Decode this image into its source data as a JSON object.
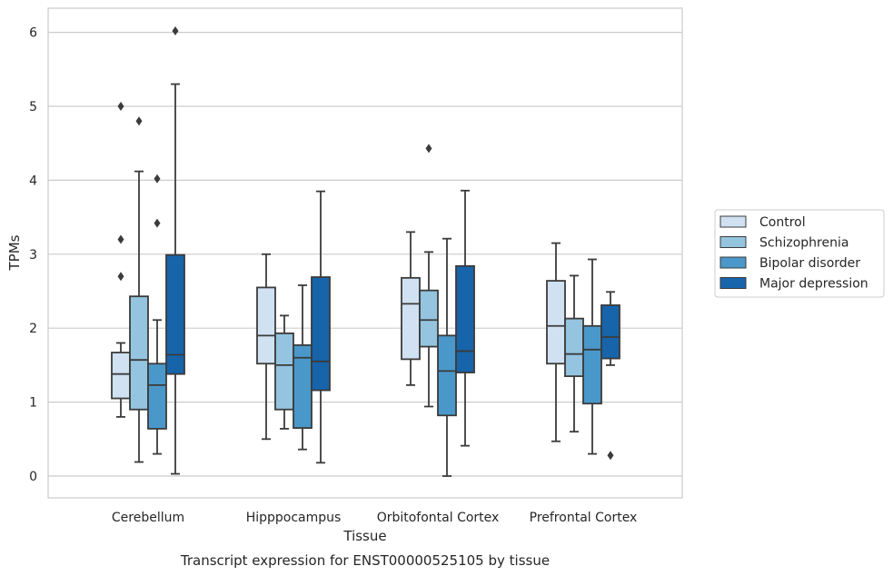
{
  "chart_data": {
    "type": "box",
    "xlabel": "Tissue",
    "ylabel": "TPMs",
    "caption": "Transcript expression for ENST00000525105 by tissue",
    "ylim": [
      -0.3,
      6.3
    ],
    "yticks": [
      0,
      1,
      2,
      3,
      4,
      5,
      6
    ],
    "grid": "horizontal",
    "legend_position": "right",
    "categories": [
      "Cerebellum",
      "Hipppocampus",
      "Orbitofontal Cortex",
      "Prefrontal Cortex"
    ],
    "series": [
      {
        "name": "Control",
        "color": "#d0e1f2",
        "boxes": [
          {
            "whisker_low": 0.8,
            "q1": 1.05,
            "median": 1.38,
            "q3": 1.67,
            "whisker_high": 1.8,
            "outliers": [
              2.7,
              3.2,
              5.0
            ]
          },
          {
            "whisker_low": 0.5,
            "q1": 1.52,
            "median": 1.9,
            "q3": 2.55,
            "whisker_high": 3.0,
            "outliers": []
          },
          {
            "whisker_low": 1.23,
            "q1": 1.58,
            "median": 2.33,
            "q3": 2.68,
            "whisker_high": 3.3,
            "outliers": []
          },
          {
            "whisker_low": 0.47,
            "q1": 1.52,
            "median": 2.03,
            "q3": 2.64,
            "whisker_high": 3.15,
            "outliers": []
          }
        ]
      },
      {
        "name": "Schizophrenia",
        "color": "#94c4df",
        "boxes": [
          {
            "whisker_low": 0.19,
            "q1": 0.9,
            "median": 1.57,
            "q3": 2.43,
            "whisker_high": 4.12,
            "outliers": [
              4.8
            ]
          },
          {
            "whisker_low": 0.64,
            "q1": 0.9,
            "median": 1.5,
            "q3": 1.93,
            "whisker_high": 2.17,
            "outliers": []
          },
          {
            "whisker_low": 0.94,
            "q1": 1.75,
            "median": 2.11,
            "q3": 2.51,
            "whisker_high": 3.03,
            "outliers": [
              4.43
            ]
          },
          {
            "whisker_low": 0.6,
            "q1": 1.35,
            "median": 1.65,
            "q3": 2.13,
            "whisker_high": 2.71,
            "outliers": []
          }
        ]
      },
      {
        "name": "Bipolar disorder",
        "color": "#4a98c9",
        "boxes": [
          {
            "whisker_low": 0.3,
            "q1": 0.64,
            "median": 1.23,
            "q3": 1.52,
            "whisker_high": 2.11,
            "outliers": [
              3.42,
              4.02
            ]
          },
          {
            "whisker_low": 0.36,
            "q1": 0.65,
            "median": 1.6,
            "q3": 1.77,
            "whisker_high": 2.58,
            "outliers": []
          },
          {
            "whisker_low": 0.0,
            "q1": 0.82,
            "median": 1.42,
            "q3": 1.9,
            "whisker_high": 3.21,
            "outliers": []
          },
          {
            "whisker_low": 0.3,
            "q1": 0.98,
            "median": 1.71,
            "q3": 2.03,
            "whisker_high": 2.93,
            "outliers": []
          }
        ]
      },
      {
        "name": "Major depression",
        "color": "#1764ab",
        "boxes": [
          {
            "whisker_low": 0.03,
            "q1": 1.38,
            "median": 1.64,
            "q3": 2.99,
            "whisker_high": 5.3,
            "outliers": [
              6.02
            ]
          },
          {
            "whisker_low": 0.18,
            "q1": 1.16,
            "median": 1.55,
            "q3": 2.69,
            "whisker_high": 3.85,
            "outliers": []
          },
          {
            "whisker_low": 0.41,
            "q1": 1.4,
            "median": 1.69,
            "q3": 2.84,
            "whisker_high": 3.86,
            "outliers": []
          },
          {
            "whisker_low": 1.5,
            "q1": 1.59,
            "median": 1.88,
            "q3": 2.31,
            "whisker_high": 2.49,
            "outliers": [
              0.28
            ]
          }
        ]
      }
    ]
  }
}
